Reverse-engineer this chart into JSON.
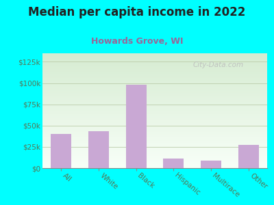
{
  "title": "Median per capita income in 2022",
  "subtitle": "Howards Grove, WI",
  "categories": [
    "All",
    "White",
    "Black",
    "Hispanic",
    "Multirace",
    "Other"
  ],
  "values": [
    40000,
    43000,
    98000,
    11000,
    9000,
    27000
  ],
  "bar_color": "#c9a8d4",
  "background_outer": "#00FFFF",
  "background_inner_top": "#d6ecd2",
  "background_inner_bottom": "#f8fff8",
  "title_color": "#222222",
  "subtitle_color": "#996699",
  "tick_label_color": "#557755",
  "yticks": [
    0,
    25000,
    50000,
    75000,
    100000,
    125000
  ],
  "ytick_labels": [
    "$0",
    "$25k",
    "$50k",
    "$75k",
    "$100k",
    "$125k"
  ],
  "ylim": [
    0,
    135000
  ],
  "watermark": "City-Data.com",
  "title_fontsize": 12,
  "subtitle_fontsize": 9,
  "tick_fontsize": 7.5
}
